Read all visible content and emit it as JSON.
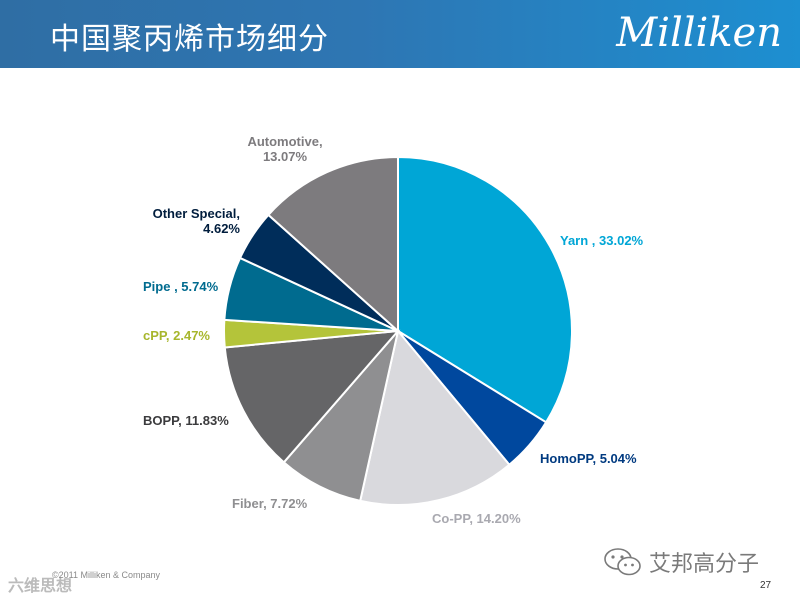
{
  "header": {
    "title": "中国聚丙烯市场细分",
    "logo_text": "Milliken",
    "gradient_start": "#2f6ea4",
    "gradient_end": "#1d8fd1"
  },
  "chart_data": {
    "type": "pie",
    "title": "",
    "start_angle_deg": 0,
    "direction": "clockwise",
    "slices": [
      {
        "label": "Yarn , 33.02%",
        "value": 33.02,
        "color": "#00a6d6",
        "label_color": "#00a6d6"
      },
      {
        "label": "HomoPP, 5.04%",
        "value": 5.04,
        "color": "#00489e",
        "label_color": "#003a80"
      },
      {
        "label": "Co-PP, 14.20%",
        "value": 14.2,
        "color": "#d9d9dd",
        "label_color": "#a9a9b0"
      },
      {
        "label": "Fiber, 7.72%",
        "value": 7.72,
        "color": "#8f8f91",
        "label_color": "#8f8f91"
      },
      {
        "label": "BOPP, 11.83%",
        "value": 11.83,
        "color": "#656567",
        "label_color": "#3b3b3d"
      },
      {
        "label": "cPP, 2.47%",
        "value": 2.47,
        "color": "#b4c43a",
        "label_color": "#a7b62c"
      },
      {
        "label": "Pipe , 5.74%",
        "value": 5.74,
        "color": "#006b8f",
        "label_color": "#006b8f"
      },
      {
        "label": "Other Special,\n4.62%",
        "value": 4.62,
        "color": "#002d5a",
        "label_color": "#001d3d"
      },
      {
        "label": "Automotive,\n13.07%",
        "value": 13.07,
        "color": "#7d7b7e",
        "label_color": "#7d7b7e"
      }
    ]
  },
  "footer": {
    "copyright": "©2011 Milliken & Company",
    "page_number": "27",
    "wechat_name": "艾邦高分子",
    "watermark": "六维思想"
  }
}
